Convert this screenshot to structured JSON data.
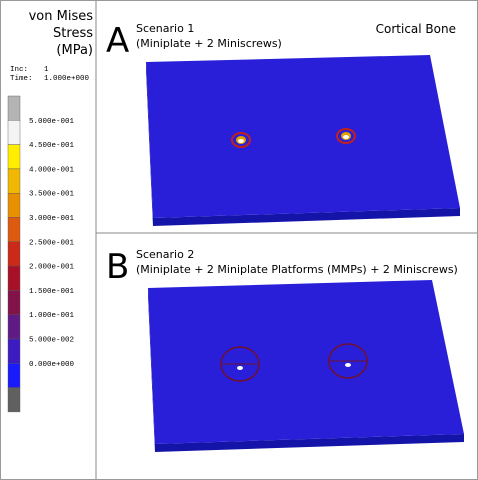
{
  "legend": {
    "title": [
      "von Mises",
      "Stress",
      "(MPa)"
    ],
    "inc_label": "Inc:",
    "inc": "1",
    "time_label": "Time:",
    "time": "1.000e+000",
    "levels": [
      "5.000e-001",
      "4.500e-001",
      "4.000e-001",
      "3.500e-001",
      "3.000e-001",
      "2.500e-001",
      "2.000e-001",
      "1.500e-001",
      "1.000e-001",
      "5.000e-002",
      "0.000e+000"
    ]
  },
  "panels": [
    {
      "letter": "A",
      "title": "Scenario 1",
      "subtitle": "(Miniplate + 2 Miniscrews)",
      "material": "Cortical Bone"
    },
    {
      "letter": "B",
      "title": "Scenario 2",
      "subtitle": "(Miniplate  + 2 Miniplate Platforms (MMPs) + 2 Miniscrews)"
    }
  ]
}
